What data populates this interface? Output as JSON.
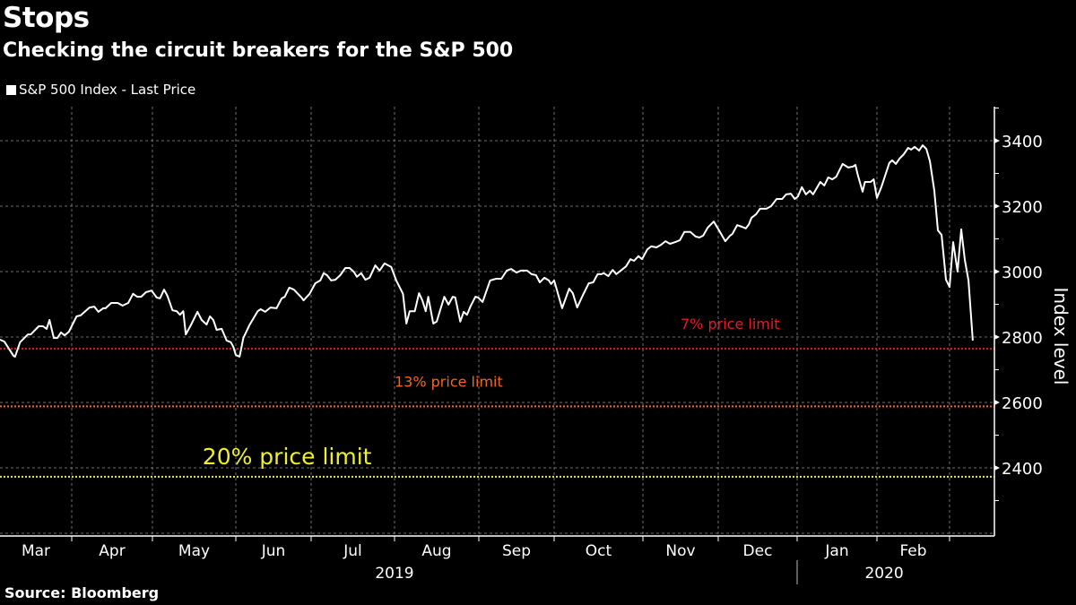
{
  "header": {
    "title": "Stops",
    "subtitle": "Checking the circuit breakers for the S&P 500"
  },
  "legend": {
    "label": "S&P 500 Index - Last Price"
  },
  "footer": {
    "source": "Source: Bloomberg"
  },
  "colors": {
    "background": "#000000",
    "series": "#ffffff",
    "grid": "#8a8a8a",
    "limit_7": "#e8192c",
    "limit_13": "#f26522",
    "limit_20": "#f0ef2a"
  },
  "chart_data": {
    "type": "line",
    "title": "Stops",
    "subtitle": "Checking the circuit breakers for the S&P 500",
    "xlabel": "",
    "ylabel": "Index level",
    "ylim": [
      2200,
      3500
    ],
    "yticks": [
      2400,
      2600,
      2800,
      3000,
      3200,
      3400
    ],
    "yminor_ticks": [
      2300,
      2500,
      2700,
      2900,
      3100,
      3300,
      3500
    ],
    "grid": true,
    "legend_position": "top-left",
    "x_unit": "months since 2019-03-01",
    "xlim": [
      0,
      12.62
    ],
    "xticks": [
      {
        "label": "Mar",
        "start": 0
      },
      {
        "label": "Apr",
        "start": 1
      },
      {
        "label": "May",
        "start": 2
      },
      {
        "label": "Jun",
        "start": 3
      },
      {
        "label": "Jul",
        "start": 4
      },
      {
        "label": "Aug",
        "start": 5
      },
      {
        "label": "Sep",
        "start": 6
      },
      {
        "label": "Oct",
        "start": 7
      },
      {
        "label": "Nov",
        "start": 8
      },
      {
        "label": "Dec",
        "start": 9
      },
      {
        "label": "Jan",
        "start": 10
      },
      {
        "label": "Feb",
        "start": 11
      },
      {
        "label": "",
        "start": 12
      }
    ],
    "year_labels": [
      {
        "label": "2019",
        "center": 5.0
      },
      {
        "label": "2020",
        "center": 11.1
      }
    ],
    "year_separator": 10,
    "series": [
      {
        "name": "S&P 500 Index - Last Price",
        "points": [
          [
            0.0,
            2792
          ],
          [
            0.06,
            2786
          ],
          [
            0.19,
            2742
          ],
          [
            0.21,
            2740
          ],
          [
            0.28,
            2784
          ],
          [
            0.39,
            2808
          ],
          [
            0.43,
            2808
          ],
          [
            0.54,
            2833
          ],
          [
            0.6,
            2833
          ],
          [
            0.65,
            2825
          ],
          [
            0.69,
            2852
          ],
          [
            0.75,
            2797
          ],
          [
            0.8,
            2797
          ],
          [
            0.85,
            2814
          ],
          [
            0.9,
            2805
          ],
          [
            0.96,
            2816
          ],
          [
            1.06,
            2863
          ],
          [
            1.11,
            2866
          ],
          [
            1.22,
            2890
          ],
          [
            1.28,
            2893
          ],
          [
            1.33,
            2877
          ],
          [
            1.39,
            2888
          ],
          [
            1.42,
            2888
          ],
          [
            1.49,
            2904
          ],
          [
            1.57,
            2904
          ],
          [
            1.63,
            2896
          ],
          [
            1.7,
            2904
          ],
          [
            1.76,
            2932
          ],
          [
            1.81,
            2923
          ],
          [
            1.86,
            2923
          ],
          [
            1.92,
            2937
          ],
          [
            1.99,
            2942
          ],
          [
            2.05,
            2921
          ],
          [
            2.09,
            2918
          ],
          [
            2.14,
            2945
          ],
          [
            2.18,
            2926
          ],
          [
            2.24,
            2882
          ],
          [
            2.29,
            2879
          ],
          [
            2.33,
            2868
          ],
          [
            2.37,
            2879
          ],
          [
            2.4,
            2808
          ],
          [
            2.46,
            2836
          ],
          [
            2.54,
            2877
          ],
          [
            2.59,
            2852
          ],
          [
            2.65,
            2838
          ],
          [
            2.69,
            2863
          ],
          [
            2.73,
            2852
          ],
          [
            2.77,
            2822
          ],
          [
            2.83,
            2825
          ],
          [
            2.89,
            2789
          ],
          [
            2.94,
            2784
          ],
          [
            2.97,
            2770
          ],
          [
            3.0,
            2745
          ],
          [
            3.05,
            2740
          ],
          [
            3.1,
            2797
          ],
          [
            3.18,
            2836
          ],
          [
            3.29,
            2879
          ],
          [
            3.33,
            2885
          ],
          [
            3.39,
            2877
          ],
          [
            3.46,
            2890
          ],
          [
            3.54,
            2888
          ],
          [
            3.61,
            2918
          ],
          [
            3.65,
            2923
          ],
          [
            3.71,
            2951
          ],
          [
            3.77,
            2945
          ],
          [
            3.87,
            2921
          ],
          [
            3.9,
            2912
          ],
          [
            3.98,
            2932
          ],
          [
            4.05,
            2964
          ],
          [
            4.11,
            2973
          ],
          [
            4.15,
            2995
          ],
          [
            4.19,
            2989
          ],
          [
            4.24,
            2973
          ],
          [
            4.29,
            2975
          ],
          [
            4.35,
            2989
          ],
          [
            4.41,
            3011
          ],
          [
            4.46,
            3011
          ],
          [
            4.51,
            3000
          ],
          [
            4.55,
            2984
          ],
          [
            4.6,
            2995
          ],
          [
            4.65,
            2975
          ],
          [
            4.7,
            2981
          ],
          [
            4.77,
            3019
          ],
          [
            4.82,
            3003
          ],
          [
            4.88,
            3025
          ],
          [
            4.96,
            3014
          ],
          [
            5.02,
            2973
          ],
          [
            5.1,
            2932
          ],
          [
            5.14,
            2841
          ],
          [
            5.18,
            2879
          ],
          [
            5.24,
            2879
          ],
          [
            5.29,
            2934
          ],
          [
            5.33,
            2912
          ],
          [
            5.37,
            2879
          ],
          [
            5.4,
            2923
          ],
          [
            5.46,
            2841
          ],
          [
            5.5,
            2847
          ],
          [
            5.59,
            2923
          ],
          [
            5.64,
            2899
          ],
          [
            5.69,
            2923
          ],
          [
            5.72,
            2921
          ],
          [
            5.78,
            2847
          ],
          [
            5.82,
            2877
          ],
          [
            5.86,
            2868
          ],
          [
            5.9,
            2893
          ],
          [
            5.96,
            2923
          ],
          [
            5.99,
            2921
          ],
          [
            6.05,
            2907
          ],
          [
            6.15,
            2973
          ],
          [
            6.23,
            2978
          ],
          [
            6.3,
            2978
          ],
          [
            6.37,
            3003
          ],
          [
            6.43,
            3008
          ],
          [
            6.5,
            2997
          ],
          [
            6.56,
            3003
          ],
          [
            6.64,
            3003
          ],
          [
            6.7,
            2992
          ],
          [
            6.76,
            2989
          ],
          [
            6.81,
            2967
          ],
          [
            6.87,
            2981
          ],
          [
            6.93,
            2973
          ],
          [
            6.96,
            2962
          ],
          [
            7.0,
            2973
          ],
          [
            7.09,
            2888
          ],
          [
            7.17,
            2948
          ],
          [
            7.21,
            2934
          ],
          [
            7.26,
            2890
          ],
          [
            7.32,
            2926
          ],
          [
            7.39,
            2964
          ],
          [
            7.44,
            2967
          ],
          [
            7.49,
            2992
          ],
          [
            7.53,
            2992
          ],
          [
            7.56,
            2995
          ],
          [
            7.61,
            2986
          ],
          [
            7.66,
            3005
          ],
          [
            7.7,
            2992
          ],
          [
            7.76,
            3005
          ],
          [
            7.81,
            3016
          ],
          [
            7.86,
            3038
          ],
          [
            7.9,
            3033
          ],
          [
            7.95,
            3047
          ],
          [
            7.99,
            3038
          ],
          [
            8.06,
            3068
          ],
          [
            8.11,
            3077
          ],
          [
            8.18,
            3074
          ],
          [
            8.24,
            3082
          ],
          [
            8.3,
            3093
          ],
          [
            8.36,
            3085
          ],
          [
            8.43,
            3090
          ],
          [
            8.49,
            3096
          ],
          [
            8.55,
            3121
          ],
          [
            8.63,
            3121
          ],
          [
            8.7,
            3107
          ],
          [
            8.75,
            3104
          ],
          [
            8.8,
            3110
          ],
          [
            8.86,
            3134
          ],
          [
            8.94,
            3153
          ],
          [
            9.01,
            3126
          ],
          [
            9.09,
            3093
          ],
          [
            9.15,
            3110
          ],
          [
            9.18,
            3115
          ],
          [
            9.24,
            3142
          ],
          [
            9.3,
            3137
          ],
          [
            9.35,
            3132
          ],
          [
            9.39,
            3145
          ],
          [
            9.42,
            3164
          ],
          [
            9.48,
            3175
          ],
          [
            9.53,
            3192
          ],
          [
            9.61,
            3192
          ],
          [
            9.67,
            3200
          ],
          [
            9.74,
            3222
          ],
          [
            9.81,
            3222
          ],
          [
            9.86,
            3236
          ],
          [
            9.92,
            3238
          ],
          [
            9.97,
            3222
          ],
          [
            10.01,
            3230
          ],
          [
            10.06,
            3258
          ],
          [
            10.11,
            3236
          ],
          [
            10.16,
            3247
          ],
          [
            10.2,
            3236
          ],
          [
            10.29,
            3274
          ],
          [
            10.34,
            3263
          ],
          [
            10.39,
            3288
          ],
          [
            10.44,
            3282
          ],
          [
            10.49,
            3290
          ],
          [
            10.57,
            3329
          ],
          [
            10.64,
            3318
          ],
          [
            10.7,
            3321
          ],
          [
            10.73,
            3326
          ],
          [
            10.76,
            3296
          ],
          [
            10.82,
            3244
          ],
          [
            10.85,
            3274
          ],
          [
            10.92,
            3274
          ],
          [
            10.96,
            3282
          ],
          [
            11.0,
            3225
          ],
          [
            11.06,
            3258
          ],
          [
            11.17,
            3332
          ],
          [
            11.21,
            3340
          ],
          [
            11.26,
            3329
          ],
          [
            11.31,
            3345
          ],
          [
            11.37,
            3359
          ],
          [
            11.43,
            3378
          ],
          [
            11.47,
            3373
          ],
          [
            11.52,
            3381
          ],
          [
            11.58,
            3370
          ],
          [
            11.63,
            3386
          ],
          [
            11.68,
            3375
          ],
          [
            11.73,
            3337
          ],
          [
            11.79,
            3247
          ],
          [
            11.84,
            3126
          ],
          [
            11.89,
            3112
          ],
          [
            11.95,
            2975
          ],
          [
            12.0,
            2953
          ],
          [
            12.05,
            3090
          ],
          [
            12.11,
            3000
          ],
          [
            12.16,
            3129
          ],
          [
            12.21,
            3036
          ],
          [
            12.26,
            2973
          ],
          [
            12.32,
            2789
          ]
        ]
      }
    ],
    "reference_lines": [
      {
        "name": "7% price limit",
        "label": "7% price limit",
        "value": 2764,
        "color_key": "limit_7",
        "label_x": 8.5
      },
      {
        "name": "13% price limit",
        "label": "13% price limit",
        "value": 2588,
        "color_key": "limit_13",
        "label_x": 5.0
      },
      {
        "name": "20% price limit",
        "label": "20% price limit",
        "value": 2373,
        "color_key": "limit_20",
        "label_x": 2.6
      }
    ]
  }
}
